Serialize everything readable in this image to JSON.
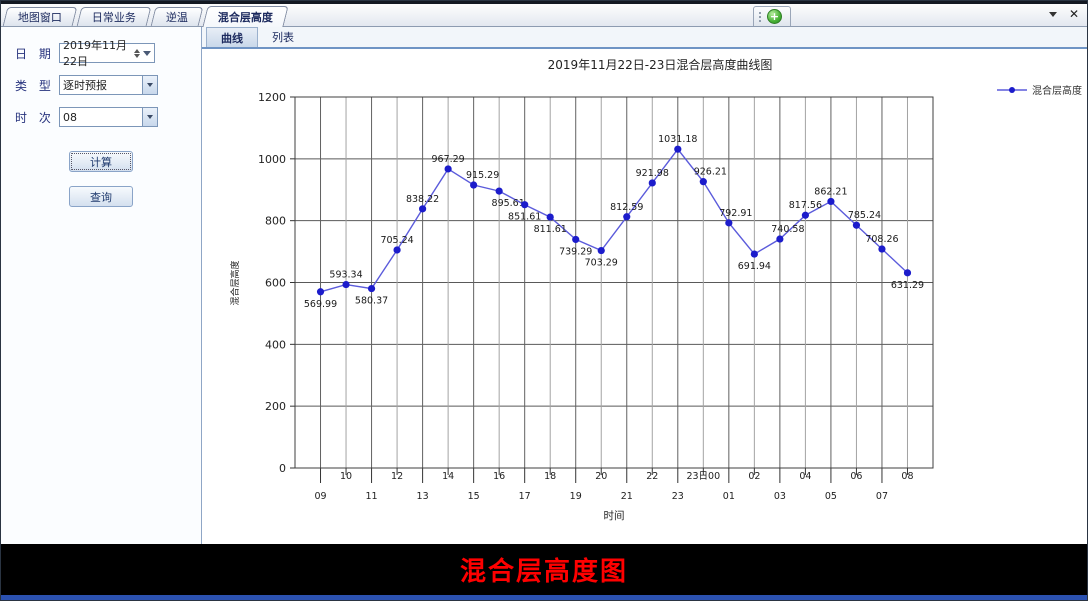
{
  "tabbar": {
    "tabs": [
      {
        "label": "地图窗口"
      },
      {
        "label": "日常业务"
      },
      {
        "label": "逆温"
      },
      {
        "label": "混合层高度"
      }
    ],
    "active_tab": "混合层高度",
    "add_button_glyph": "+",
    "close_glyph": "✕"
  },
  "sidebar": {
    "fields": [
      {
        "label": "日 期",
        "value": "2019年11月22日"
      },
      {
        "label": "类 型",
        "value": "逐时预报"
      },
      {
        "label": "时 次",
        "value": "08"
      }
    ],
    "buttons": [
      {
        "label": "计算"
      },
      {
        "label": "查询"
      }
    ]
  },
  "main": {
    "subtabs": [
      {
        "label": "曲线"
      },
      {
        "label": "列表"
      }
    ],
    "active_subtab": "曲线"
  },
  "chart_data": {
    "type": "line",
    "title": "2019年11月22日-23日混合层高度曲线图",
    "xlabel": "时间",
    "ylabel": "混合层高度",
    "legend": [
      "混合层高度"
    ],
    "ylim": [
      0,
      1200
    ],
    "yticks": [
      0,
      200,
      400,
      600,
      800,
      1000,
      1200
    ],
    "grid": true,
    "legend_position": "right",
    "categories": [
      "09",
      "10",
      "11",
      "12",
      "13",
      "14",
      "15",
      "16",
      "17",
      "18",
      "19",
      "20",
      "21",
      "22",
      "23",
      "23日00",
      "01",
      "02",
      "03",
      "04",
      "05",
      "06",
      "07",
      "08"
    ],
    "values": [
      569.99,
      593.34,
      580.37,
      705.24,
      838.22,
      967.29,
      915.29,
      895.61,
      851.61,
      811.61,
      739.29,
      703.29,
      812.59,
      921.98,
      1031.18,
      926.21,
      792.91,
      691.94,
      740.58,
      817.56,
      862.21,
      785.24,
      708.26,
      631.29
    ],
    "colors": {
      "line": "#5b5bdb",
      "marker": "#1c1ccb"
    }
  },
  "footer": {
    "caption": "混合层高度图",
    "color": "#ff0000"
  }
}
